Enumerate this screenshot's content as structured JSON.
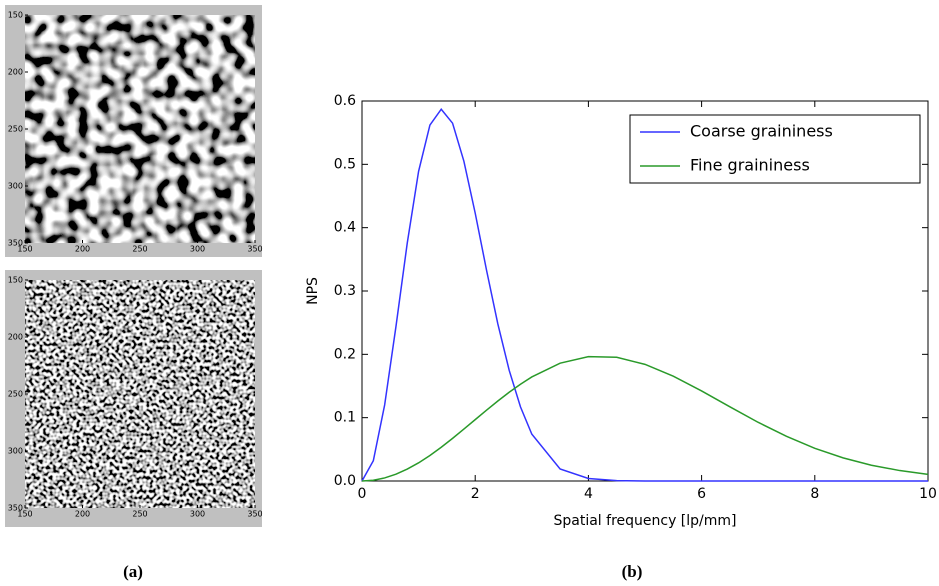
{
  "chart_data": [
    {
      "type": "image",
      "xlim": [
        150,
        350
      ],
      "ylim": [
        350,
        150
      ],
      "xticks": [
        150,
        200,
        250,
        300,
        350
      ],
      "yticks": [
        150,
        200,
        250,
        300,
        350
      ]
    },
    {
      "type": "image",
      "xlim": [
        150,
        350
      ],
      "ylim": [
        350,
        150
      ],
      "xticks": [
        150,
        200,
        250,
        300,
        350
      ],
      "yticks": [
        150,
        200,
        250,
        300,
        350
      ]
    },
    {
      "type": "line",
      "xlabel": "Spatial frequency [lp/mm]",
      "ylabel": "NPS",
      "x": [
        0,
        0.2,
        0.4,
        0.6,
        0.8,
        1.0,
        1.2,
        1.4,
        1.6,
        1.8,
        2.0,
        2.2,
        2.4,
        2.6,
        2.8,
        3.0,
        3.5,
        4.0,
        4.5,
        5.0,
        5.5,
        6.0,
        6.5,
        7.0,
        7.5,
        8.0,
        8.5,
        9.0,
        9.5,
        10
      ],
      "series": [
        {
          "name": "Coarse graininess",
          "color": "#3333ff",
          "values": [
            0,
            0.032,
            0.12,
            0.244,
            0.376,
            0.489,
            0.562,
            0.587,
            0.565,
            0.505,
            0.423,
            0.333,
            0.248,
            0.175,
            0.117,
            0.074,
            0.019,
            0.004,
            0.0005,
            0,
            0,
            0,
            0,
            0,
            0,
            0,
            0,
            0,
            0,
            0
          ]
        },
        {
          "name": "Fine graininess",
          "color": "#2a9a2a",
          "values": [
            0,
            0.0012,
            0.0048,
            0.0107,
            0.0188,
            0.0287,
            0.0403,
            0.0533,
            0.0673,
            0.082,
            0.0969,
            0.1118,
            0.1263,
            0.1401,
            0.1528,
            0.1643,
            0.186,
            0.1964,
            0.1953,
            0.1842,
            0.1655,
            0.1422,
            0.1171,
            0.0926,
            0.0705,
            0.0516,
            0.0365,
            0.0249,
            0.0165,
            0.0105
          ]
        }
      ],
      "xlim": [
        0,
        10
      ],
      "ylim": [
        0,
        0.6
      ],
      "xticks": [
        0,
        2,
        4,
        6,
        8,
        10
      ],
      "yticks": [
        {
          "value": 0,
          "label": "0.0"
        },
        0.1,
        0.2,
        0.3,
        0.4,
        0.5,
        0.6
      ],
      "legend": "upper right"
    }
  ],
  "figure_labels": [
    "(a)",
    "(b)"
  ]
}
